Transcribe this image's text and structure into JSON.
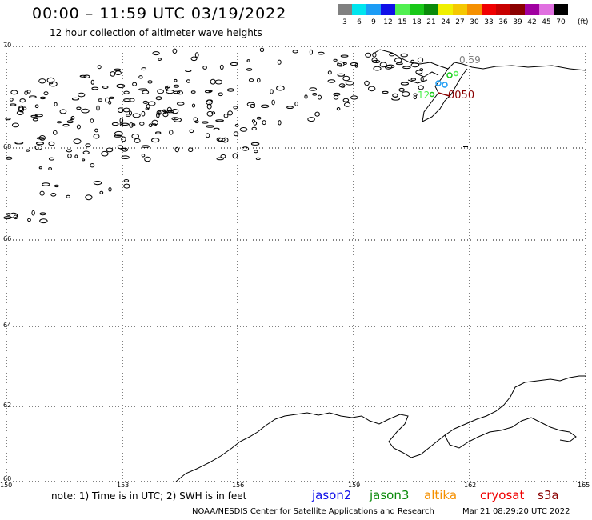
{
  "header": {
    "title": "00:00 – 11:59 UTC 03/19/2022",
    "subtitle": "12 hour collection of altimeter wave heights"
  },
  "legend": {
    "unit": "(ft)",
    "items": [
      {
        "label": "3",
        "color": "#808080"
      },
      {
        "label": "6",
        "color": "#00e5ee"
      },
      {
        "label": "9",
        "color": "#1c9cf5"
      },
      {
        "label": "12",
        "color": "#1010e8"
      },
      {
        "label": "15",
        "color": "#50f050"
      },
      {
        "label": "18",
        "color": "#18c818"
      },
      {
        "label": "21",
        "color": "#0a8a0a"
      },
      {
        "label": "24",
        "color": "#f0f000"
      },
      {
        "label": "27",
        "color": "#f5c800"
      },
      {
        "label": "30",
        "color": "#f59000"
      },
      {
        "label": "33",
        "color": "#f00000"
      },
      {
        "label": "36",
        "color": "#c80000"
      },
      {
        "label": "39",
        "color": "#8a0000"
      },
      {
        "label": "42",
        "color": "#a000a0"
      },
      {
        "label": "45",
        "color": "#e070e0"
      },
      {
        "label": "70",
        "color": "#000000"
      }
    ]
  },
  "map": {
    "lat_labels": [
      "70",
      "68",
      "66",
      "64",
      "62",
      "60"
    ],
    "lon_labels": [
      "150",
      "153",
      "156",
      "159",
      "162",
      "165"
    ],
    "pass_labels": [
      {
        "text": "0.59",
        "color": "#808080"
      },
      {
        "text": "0050",
        "color": "#8a0000"
      },
      {
        "text": "12",
        "color": "#50f050"
      }
    ]
  },
  "satellites": [
    {
      "name": "jason2",
      "color": "#1010e8"
    },
    {
      "name": "jason3",
      "color": "#0a8a0a"
    },
    {
      "name": "altika",
      "color": "#f59000"
    },
    {
      "name": "cryosat",
      "color": "#f00000"
    },
    {
      "name": "s3a",
      "color": "#8a0000"
    }
  ],
  "footer": {
    "note": "note: 1) Time is in UTC; 2) SWH is in feet",
    "credit": "NOAA/NESDIS Center for Satellite Applications and Research",
    "timestamp": "Mar 21 08:29:20 UTC 2022"
  }
}
